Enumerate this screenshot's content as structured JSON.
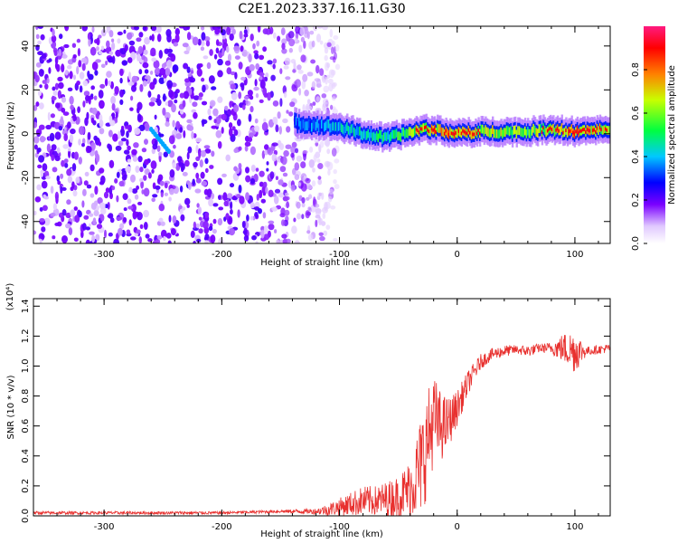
{
  "title": "C2E1.2023.337.16.11.G30",
  "colors": {
    "snr_line": "#e8302e",
    "spectrum_low": "#6a00d8",
    "spectrum_band": "#10d0e0",
    "spectrum_peak": "#ff1a40"
  },
  "colorbar": {
    "label": "Normalized spectral amplitude",
    "ticks": [
      "0.0",
      "0.2",
      "0.4",
      "0.6",
      "0.8"
    ],
    "range": [
      0,
      1
    ]
  },
  "chart_data": [
    {
      "type": "heatmap",
      "xlabel": "Height of straight line (km)",
      "ylabel": "Frequency (Hz)",
      "xlim": [
        -360,
        130
      ],
      "ylim": [
        -50,
        49
      ],
      "xticks": [
        "-300",
        "-200",
        "-100",
        "0",
        "100"
      ],
      "yticks": [
        "-40",
        "-20",
        "0",
        "20",
        "40"
      ],
      "noise_region_x": [
        -360,
        -120
      ],
      "band": {
        "x": [
          -138,
          -120,
          -100,
          -80,
          -60,
          -45,
          -30,
          -20,
          0,
          20,
          40,
          60,
          80,
          100,
          130
        ],
        "freq_hz": [
          5,
          4,
          3,
          0,
          -2,
          0,
          2,
          2,
          0,
          1,
          1,
          1,
          2,
          1,
          2
        ],
        "amplitude": [
          0.35,
          0.4,
          0.45,
          0.5,
          0.55,
          0.6,
          0.75,
          0.8,
          0.85,
          0.7,
          0.7,
          0.65,
          0.75,
          0.85,
          0.7
        ]
      },
      "diagonal_feature": {
        "x": [
          -260,
          -245
        ],
        "freq_hz": [
          2,
          -8
        ]
      }
    },
    {
      "type": "line",
      "xlabel": "Height of straight line (km)",
      "ylabel": "SNR (10 * v/v)",
      "yscale_label": "(x10⁴)",
      "xlim": [
        -360,
        130
      ],
      "ylim": [
        0,
        1.45
      ],
      "xticks": [
        "-300",
        "-200",
        "-100",
        "0",
        "100"
      ],
      "yticks": [
        "0.0",
        "0.2",
        "0.4",
        "0.6",
        "0.8",
        "1.0",
        "1.2",
        "1.4"
      ],
      "series": [
        {
          "x": [
            -360,
            -300,
            -250,
            -200,
            -150,
            -120,
            -110,
            -100,
            -90,
            -80,
            -70,
            -60,
            -50,
            -40,
            -30,
            -25,
            -20,
            -15,
            -10,
            -5,
            0,
            10,
            20,
            30,
            40,
            50,
            60,
            70,
            80,
            90,
            100,
            110,
            120,
            130
          ],
          "values": [
            0.02,
            0.02,
            0.02,
            0.02,
            0.03,
            0.03,
            0.04,
            0.06,
            0.08,
            0.1,
            0.1,
            0.11,
            0.13,
            0.18,
            0.35,
            0.5,
            0.65,
            0.6,
            0.6,
            0.65,
            0.72,
            0.9,
            1.03,
            1.08,
            1.1,
            1.11,
            1.1,
            1.12,
            1.12,
            1.12,
            1.1,
            1.1,
            1.11,
            1.12
          ],
          "noise": [
            0.01,
            0.01,
            0.01,
            0.01,
            0.01,
            0.02,
            0.04,
            0.06,
            0.08,
            0.1,
            0.1,
            0.12,
            0.14,
            0.2,
            0.35,
            0.35,
            0.3,
            0.25,
            0.2,
            0.15,
            0.12,
            0.08,
            0.05,
            0.04,
            0.04,
            0.03,
            0.04,
            0.03,
            0.04,
            0.1,
            0.15,
            0.03,
            0.03,
            0.03
          ]
        }
      ]
    }
  ]
}
